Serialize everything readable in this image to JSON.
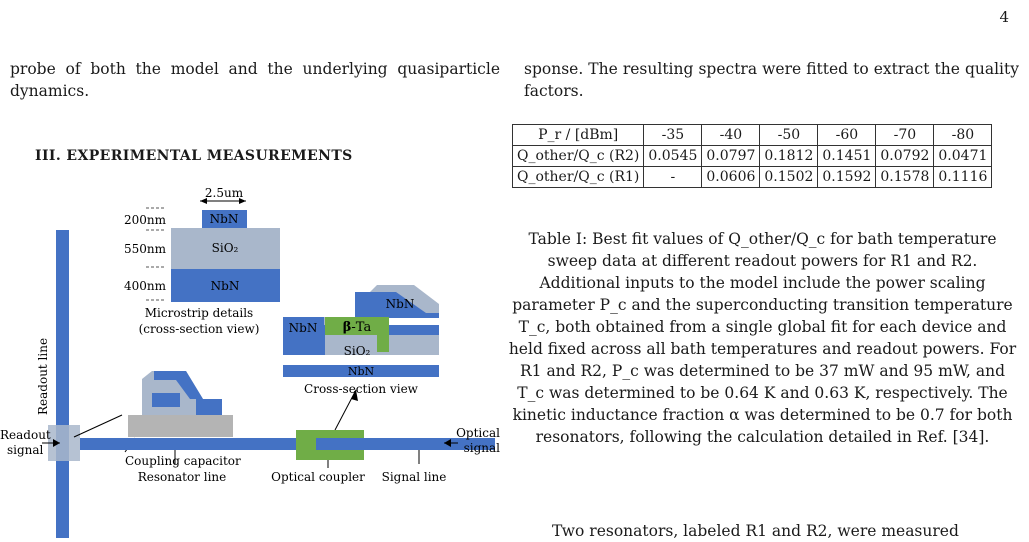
{
  "page_number": "4",
  "left_paragraph": "probe of both the model and the underlying quasiparticle dynamics.",
  "section_heading": "III.   EXPERIMENTAL MEASUREMENTS",
  "figure": {
    "labels": {
      "dim_width": "2.5um",
      "thick_top": "200nm",
      "thick_mid": "550nm",
      "thick_bot": "400nm",
      "nbn_top": "NbN",
      "sio2": "SiO₂",
      "nbn_bot": "NbN",
      "microstrip_caption_1": "Microstrip details",
      "microstrip_caption_2": "(cross-section view)",
      "readout_line": "Readout line",
      "coupling_capacitor": "Coupling capacitor",
      "cs_nbn_top": "NbN",
      "cs_nbn_left": "NbN",
      "cs_beta_ta_prefix": "β",
      "cs_beta_ta_suffix": "-Ta",
      "cs_sio2": "SiO₂",
      "cs_nbn_bottom": "NbN",
      "cross_section_view": "Cross-section view",
      "readout_signal_1": "Readout",
      "readout_signal_2": "signal",
      "optical_signal_1": "Optical",
      "optical_signal_2": "signal",
      "resonator_line": "Resonator line",
      "optical_coupler": "Optical coupler",
      "signal_line": "Signal line"
    },
    "colors": {
      "nbn_blue": "#4472c4",
      "sio2_gray": "#a9b7cb",
      "beta_ta_green": "#70ad47",
      "pad_gray": "#b4b4b4"
    }
  },
  "right_paragraph": "sponse. The resulting spectra were fitted to extract the quality factors.",
  "table": {
    "header": [
      "P_r / [dBm]",
      "-35",
      "-40",
      "-50",
      "-60",
      "-70",
      "-80"
    ],
    "rows": [
      {
        "label": "Q_other/Q_c (R2)",
        "values": [
          "0.0545",
          "0.0797",
          "0.1812",
          "0.1451",
          "0.0792",
          "0.0471"
        ]
      },
      {
        "label": "Q_other/Q_c (R1)",
        "values": [
          "-",
          "0.0606",
          "0.1502",
          "0.1592",
          "0.1578",
          "0.1116"
        ]
      }
    ]
  },
  "caption": "Table I: Best fit values of Q_other/Q_c for bath temperature sweep data at different readout powers for R1 and R2. Additional inputs to the model include the power scaling parameter P_c and the superconducting transition temperature T_c, both obtained from a single global fit for each device and held fixed across all bath temperatures and readout powers. For R1 and R2, P_c was determined to be 37 mW and 95 mW, and T_c was determined to be 0.64 K and 0.63 K, respectively. The kinetic inductance fraction α was determined to be 0.7 for both resonators, following the calculation detailed in Ref. [34].",
  "bottom_paragraph": "Two resonators, labeled R1 and R2, were measured"
}
